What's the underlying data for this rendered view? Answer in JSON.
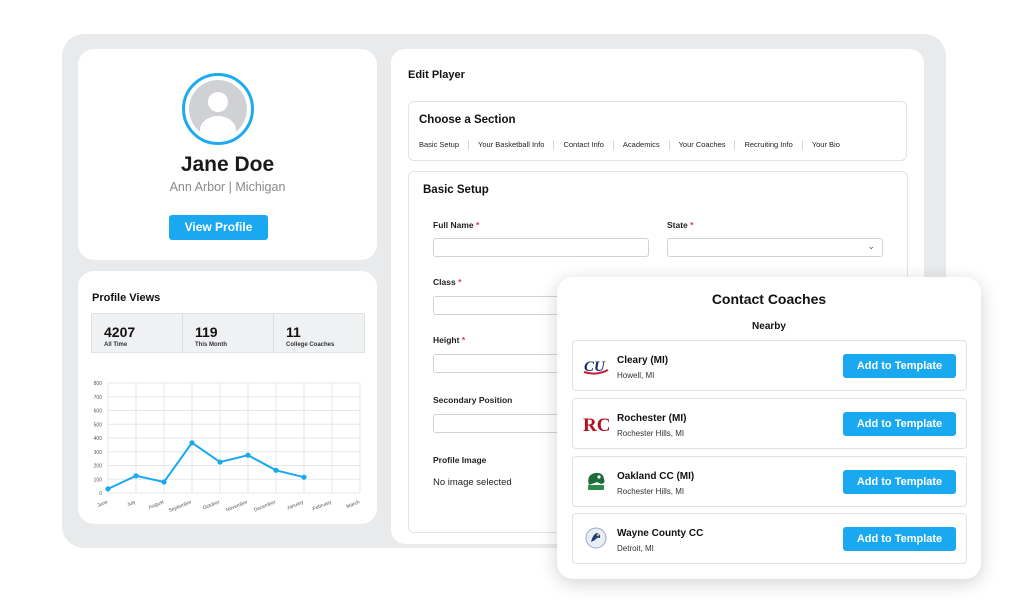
{
  "profile": {
    "name": "Jane Doe",
    "location": "Ann Arbor |  Michigan",
    "view_profile_label": "View Profile"
  },
  "views": {
    "title": "Profile Views",
    "stats": [
      {
        "value": "4207",
        "label": "All Time"
      },
      {
        "value": "119",
        "label": "This Month"
      },
      {
        "value": "11",
        "label": "College Coaches"
      }
    ]
  },
  "chart_data": {
    "type": "line",
    "categories": [
      "June",
      "July",
      "August",
      "September",
      "October",
      "November",
      "December",
      "January",
      "February",
      "March"
    ],
    "series": [
      {
        "values": [
          30,
          125,
          80,
          365,
          225,
          275,
          165,
          115,
          null,
          null
        ]
      }
    ],
    "ylim": [
      0,
      800
    ],
    "yticks": [
      "0",
      "100",
      "200",
      "300",
      "400",
      "500",
      "600",
      "700",
      "800"
    ],
    "grid": true,
    "color": "#1aa9f0"
  },
  "edit": {
    "title": "Edit Player",
    "choose_section": "Choose a Section",
    "tabs": [
      "Basic Setup",
      "Your Basketball Info",
      "Contact Info",
      "Academics",
      "Your Coaches",
      "Recruiting Info",
      "Your Bio"
    ],
    "basic_setup": "Basic Setup",
    "fields": {
      "full_name": "Full Name",
      "state": "State",
      "class": "Class",
      "height": "Height",
      "secondary_position": "Secondary Position",
      "profile_image": "Profile Image"
    },
    "required_mark": "*",
    "no_image": "No image selected"
  },
  "contact": {
    "title": "Contact Coaches",
    "subtitle": "Nearby",
    "add_label": "Add to Template",
    "coaches": [
      {
        "name": "Cleary (MI)",
        "city": "Howell, MI",
        "logo": "cleary-logo"
      },
      {
        "name": "Rochester (MI)",
        "city": "Rochester Hills, MI",
        "logo": "rochester-logo"
      },
      {
        "name": "Oakland CC (MI)",
        "city": "Rochester Hills, MI",
        "logo": "oakland-logo"
      },
      {
        "name": "Wayne County CC",
        "city": "Detroit, MI",
        "logo": "wayne-logo"
      }
    ]
  },
  "colors": {
    "accent": "#1aa9f0",
    "required": "#e0314b"
  }
}
